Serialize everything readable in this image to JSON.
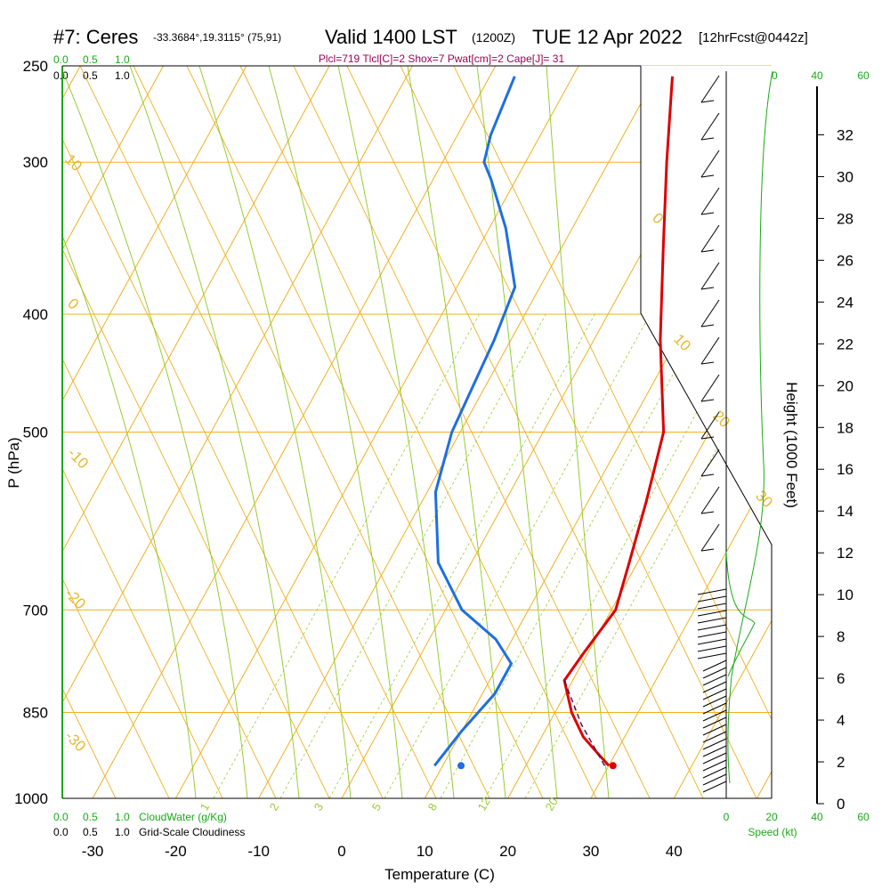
{
  "header": {
    "station": "#7: Ceres",
    "coords": "-33.3684°,19.3115° (75,91)",
    "valid": "Valid 1400 LST",
    "zulu": "(1200Z)",
    "date": "TUE 12 Apr 2022",
    "forecast": "[12hrFcst@0442z]",
    "params": "Plcl=719 Tlcl[C]=2 Shox=7 Pwat[cm]=2 Cape[J]= 31"
  },
  "scales": {
    "cloud_green_top": [
      "0.0",
      "0.5",
      "1.0"
    ],
    "cloud_black_top": [
      "0.0",
      "0.5",
      "1.0"
    ],
    "cloud_green_bottom": [
      "0.0",
      "0.5",
      "1.0"
    ],
    "cloud_black_bottom": [
      "0.0",
      "0.5",
      "1.0"
    ],
    "cloudwater_label": "CloudWater (g/Kg)",
    "cloudiness_label": "Grid-Scale Cloudiness",
    "speed_ticks": [
      "0",
      "20",
      "40",
      "60"
    ],
    "speed_label": "Speed (kt)"
  },
  "chart_data": {
    "type": "skew-t",
    "xlabel": "Temperature (C)",
    "ylabel": "P (hPa)",
    "y2label": "Height (1000 Feet)",
    "pressure_levels": [
      250,
      300,
      400,
      500,
      700,
      850,
      1000
    ],
    "temperature_ticks": [
      -30,
      -20,
      -10,
      0,
      10,
      20,
      30,
      40
    ],
    "height_ticks": [
      0,
      2,
      4,
      6,
      8,
      10,
      12,
      14,
      16,
      18,
      20,
      22,
      24,
      26,
      28,
      30,
      32
    ],
    "isotherm_labels": [
      "10",
      "0",
      "-10",
      "-20",
      "-30",
      "0",
      "10",
      "20",
      "30"
    ],
    "mixing_ratio_labels": [
      "1",
      "2",
      "3",
      "5",
      "8",
      "12",
      "20"
    ],
    "series": [
      {
        "name": "Temperature",
        "color": "#dd0000",
        "points": [
          [
            30,
            940
          ],
          [
            28,
            920
          ],
          [
            25,
            890
          ],
          [
            22,
            850
          ],
          [
            19,
            800
          ],
          [
            19.5,
            760
          ],
          [
            20.5,
            700
          ],
          [
            19,
            640
          ],
          [
            17,
            570
          ],
          [
            14.5,
            500
          ],
          [
            8,
            420
          ],
          [
            2,
            350
          ],
          [
            -3,
            300
          ],
          [
            -8,
            255
          ]
        ]
      },
      {
        "name": "Dewpoint",
        "color": "#1e6fe0",
        "points": [
          [
            9,
            940
          ],
          [
            10,
            880
          ],
          [
            11.5,
            820
          ],
          [
            11.5,
            775
          ],
          [
            8,
            740
          ],
          [
            2,
            700
          ],
          [
            -4,
            640
          ],
          [
            -9,
            560
          ],
          [
            -11,
            500
          ],
          [
            -12,
            420
          ],
          [
            -13,
            380
          ],
          [
            -18,
            340
          ],
          [
            -23,
            310
          ],
          [
            -25,
            300
          ],
          [
            -26,
            285
          ],
          [
            -27,
            255
          ]
        ]
      },
      {
        "name": "Parcel",
        "color": "#5a1050",
        "points": [
          [
            29.5,
            940
          ],
          [
            24,
            870
          ],
          [
            19,
            800
          ]
        ]
      }
    ],
    "surface_markers": {
      "temperature": 30.5,
      "dewpoint": 12.2
    }
  }
}
